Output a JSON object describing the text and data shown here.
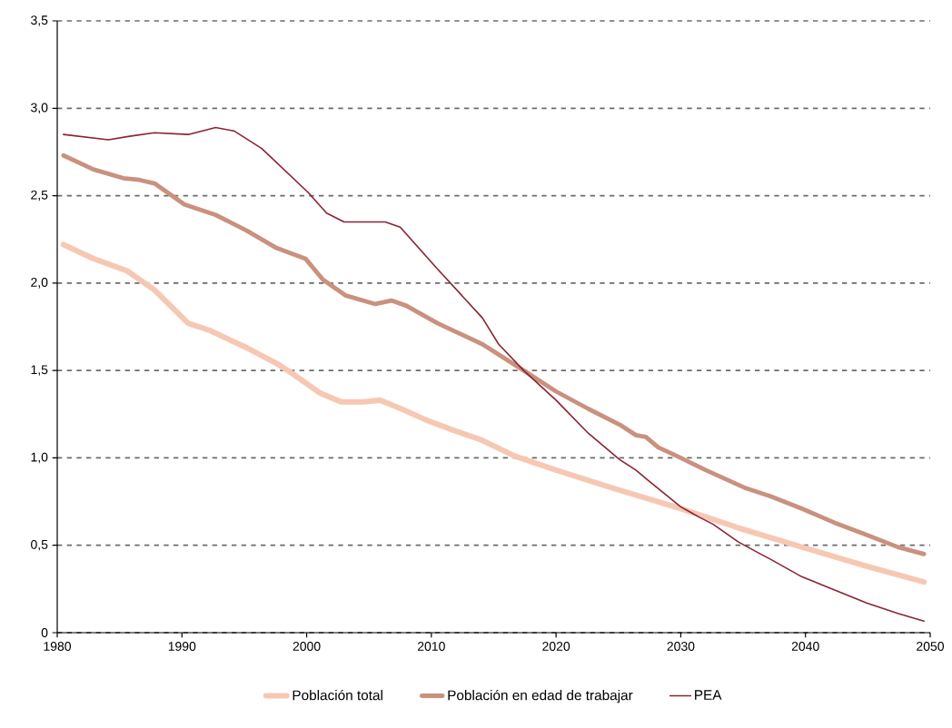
{
  "chart_data": {
    "type": "line",
    "xlim": [
      1980,
      2050
    ],
    "xticks": [
      1980,
      1990,
      2000,
      2010,
      2020,
      2030,
      2040,
      2050
    ],
    "ylim": [
      0,
      3.5
    ],
    "yticks": [
      0,
      {
        "value": 0.5,
        "label": "0,5"
      },
      {
        "value": 1.0,
        "label": "1,0"
      },
      {
        "value": 1.5,
        "label": "1,5"
      },
      {
        "value": 2.0,
        "label": "2,0"
      },
      {
        "value": 2.5,
        "label": "2,5"
      },
      {
        "value": 3.0,
        "label": "3,0"
      },
      {
        "value": 3.5,
        "label": "3,5"
      }
    ],
    "grid": "y",
    "legend": "bottom",
    "line_style": "solid",
    "marker": "none",
    "series": [
      {
        "name": "Población total",
        "color": "#f6c8b4",
        "x": [
          1980.5,
          1982.9,
          1985.6,
          1987.8,
          1990.5,
          1992.2,
          1995.2,
          1997.6,
          1998.7,
          2001.1,
          2002.8,
          2004.5,
          2005.9,
          2007.6,
          2009.8,
          2011.7,
          2014.1,
          2016.7,
          2020,
          2024.4,
          2030,
          2034.6,
          2039.7,
          2044.9,
          2049.5
        ],
        "values": [
          2.22,
          2.14,
          2.07,
          1.96,
          1.77,
          1.73,
          1.63,
          1.54,
          1.49,
          1.37,
          1.32,
          1.32,
          1.33,
          1.28,
          1.21,
          1.16,
          1.1,
          1.01,
          0.93,
          0.83,
          0.71,
          0.6,
          0.49,
          0.38,
          0.29
        ]
      },
      {
        "name": "Población en edad de trabajar",
        "color": "#c9917e",
        "x": [
          1980.5,
          1982.9,
          1985.3,
          1986.6,
          1987.8,
          1990.2,
          1992.7,
          1995.2,
          1997.6,
          1999.9,
          2001.3,
          2003.1,
          2005.5,
          2006.8,
          2008,
          2010.5,
          2014.1,
          2017.4,
          2020,
          2022.6,
          2025.1,
          2026.4,
          2027.2,
          2028.2,
          2030,
          2032,
          2035.1,
          2037.2,
          2039.7,
          2042.3,
          2044.9,
          2047.4,
          2049.5
        ],
        "values": [
          2.73,
          2.65,
          2.6,
          2.59,
          2.57,
          2.45,
          2.39,
          2.3,
          2.2,
          2.14,
          2.02,
          1.93,
          1.88,
          1.9,
          1.87,
          1.77,
          1.65,
          1.5,
          1.38,
          1.28,
          1.19,
          1.13,
          1.12,
          1.06,
          1.0,
          0.93,
          0.83,
          0.78,
          0.71,
          0.63,
          0.56,
          0.49,
          0.45
        ]
      },
      {
        "name": "PEA",
        "color": "#8b2332",
        "x": [
          1980.5,
          1984.1,
          1985.8,
          1987.8,
          1990.5,
          1992.7,
          1994.2,
          1996.4,
          2000.1,
          2001.6,
          2003,
          2006.3,
          2007.5,
          2010.5,
          2014.1,
          2015.4,
          2017.4,
          2020,
          2022.6,
          2025.1,
          2026.4,
          2027.4,
          2030,
          2031.5,
          2032.6,
          2034.6,
          2036.4,
          2037.2,
          2039.7,
          2041.8,
          2044.9,
          2047.4,
          2049.5
        ],
        "values": [
          2.85,
          2.82,
          2.84,
          2.86,
          2.85,
          2.89,
          2.87,
          2.77,
          2.52,
          2.4,
          2.35,
          2.35,
          2.32,
          2.08,
          1.8,
          1.65,
          1.5,
          1.33,
          1.14,
          0.99,
          0.93,
          0.87,
          0.72,
          0.66,
          0.62,
          0.52,
          0.45,
          0.42,
          0.32,
          0.26,
          0.17,
          0.11,
          0.066
        ]
      }
    ]
  }
}
